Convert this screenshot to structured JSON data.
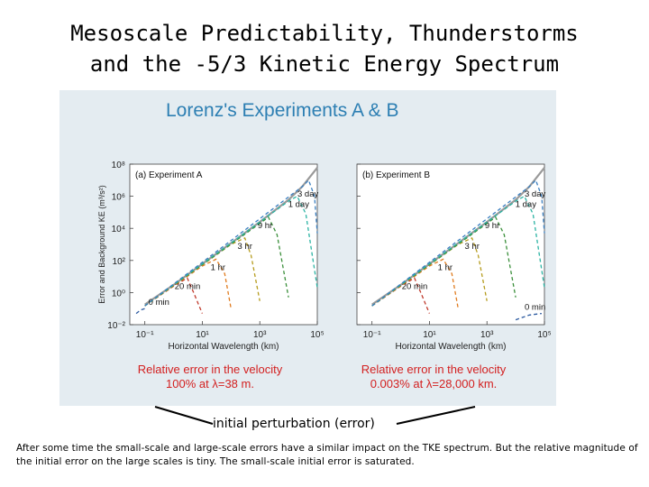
{
  "slide": {
    "title_line1": "Mesoscale Predictability, Thunderstorms",
    "title_line2": "and the -5/3 Kinetic Energy Spectrum",
    "pointer_label": "initial perturbation (error)",
    "caption": "After some time the small-scale and large-scale errors have a similar impact on the TKE spectrum. But the relative magnitude of the initial error on the large scales is tiny. The small-scale initial error is saturated."
  },
  "figure": {
    "title": "Lorenz's Experiments A & B",
    "note_a_line1": "Relative error in the velocity",
    "note_a_line2": "100% at λ=38 m.",
    "note_b_line1": "Relative error in the velocity",
    "note_b_line2": "0.003% at λ=28,000 km.",
    "colors": {
      "background_spectrum": "#999999",
      "error_curves": [
        "#2c5aa0",
        "#c0392b",
        "#e07b1e",
        "#b59b1c",
        "#3a8f3a",
        "#2bb3a3",
        "#3a7fc0"
      ],
      "annotation": "#d32020",
      "title": "#2d7fb3"
    }
  },
  "chart_data": [
    {
      "type": "line",
      "title": "(a) Experiment A",
      "xlabel": "Horizontal Wavelength (km)",
      "ylabel": "Error and Background KE (m³/s²)",
      "log_x": true,
      "log_y": true,
      "xlim": [
        0.03,
        100000
      ],
      "ylim": [
        0.01,
        100000000
      ],
      "xticks": [
        "10⁻¹",
        "10¹",
        "10³",
        "10⁵"
      ],
      "yticks": [
        "10⁸",
        "10⁶",
        "10⁴",
        "10²",
        "10⁰",
        "10⁻²"
      ],
      "series": [
        {
          "role": "background",
          "x": [
            0.1,
            1,
            10,
            100,
            1000,
            10000,
            30000,
            100000
          ],
          "y": [
            0.18,
            3,
            60,
            1200,
            25000,
            600000,
            4000000,
            60000000
          ]
        },
        {
          "label": "0 min",
          "x": [
            0.05,
            0.07,
            0.1
          ],
          "y": [
            0.05,
            0.08,
            0.1
          ]
        },
        {
          "label": "20 min",
          "x": [
            0.1,
            1,
            3,
            5,
            10
          ],
          "y": [
            0.15,
            2.5,
            8,
            1,
            0.05
          ]
        },
        {
          "label": "1 hr",
          "x": [
            0.1,
            10,
            30,
            60,
            100
          ],
          "y": [
            0.15,
            45,
            120,
            15,
            0.1
          ]
        },
        {
          "label": "3 hr",
          "x": [
            0.1,
            100,
            300,
            500,
            1000
          ],
          "y": [
            0.15,
            1000,
            2500,
            200,
            0.3
          ]
        },
        {
          "label": "9 hr",
          "x": [
            0.1,
            1000,
            2000,
            4000,
            10000
          ],
          "y": [
            0.15,
            20000,
            50000,
            4000,
            0.5
          ]
        },
        {
          "label": "1 day",
          "x": [
            0.1,
            10000,
            20000,
            40000,
            100000
          ],
          "y": [
            0.15,
            500000,
            1000000,
            80000,
            2
          ]
        },
        {
          "label": "3 day",
          "x": [
            0.1,
            30000,
            50000,
            80000,
            100000
          ],
          "y": [
            0.15,
            4000000,
            10000000,
            1000000,
            5000
          ]
        }
      ]
    },
    {
      "type": "line",
      "title": "(b) Experiment B",
      "xlabel": "Horizontal Wavelength (km)",
      "log_x": true,
      "log_y": true,
      "xlim": [
        0.03,
        100000
      ],
      "ylim": [
        0.01,
        100000000
      ],
      "xticks": [
        "10⁻¹",
        "10¹",
        "10³",
        "10⁵"
      ],
      "series": [
        {
          "role": "background",
          "x": [
            0.1,
            1,
            10,
            100,
            1000,
            10000,
            30000,
            100000
          ],
          "y": [
            0.18,
            3,
            60,
            1200,
            25000,
            600000,
            4000000,
            60000000
          ]
        },
        {
          "label": "0 min",
          "x": [
            10000,
            30000,
            80000
          ],
          "y": [
            0.02,
            0.04,
            0.05
          ]
        },
        {
          "label": "20 min",
          "x": [
            0.1,
            1,
            3,
            5,
            10
          ],
          "y": [
            0.15,
            2.5,
            8,
            1,
            0.05
          ]
        },
        {
          "label": "1 hr",
          "x": [
            0.1,
            10,
            30,
            60,
            100
          ],
          "y": [
            0.15,
            45,
            120,
            15,
            0.1
          ]
        },
        {
          "label": "3 hr",
          "x": [
            0.1,
            100,
            300,
            500,
            1000
          ],
          "y": [
            0.15,
            1000,
            2500,
            200,
            0.3
          ]
        },
        {
          "label": "9 hr",
          "x": [
            0.1,
            1000,
            2000,
            4000,
            10000
          ],
          "y": [
            0.15,
            20000,
            50000,
            4000,
            0.5
          ]
        },
        {
          "label": "1 day",
          "x": [
            0.1,
            10000,
            20000,
            40000,
            100000
          ],
          "y": [
            0.15,
            500000,
            1000000,
            80000,
            2
          ]
        },
        {
          "label": "3 day",
          "x": [
            0.1,
            30000,
            50000,
            80000,
            100000
          ],
          "y": [
            0.15,
            4000000,
            10000000,
            1000000,
            5000
          ]
        }
      ]
    }
  ]
}
